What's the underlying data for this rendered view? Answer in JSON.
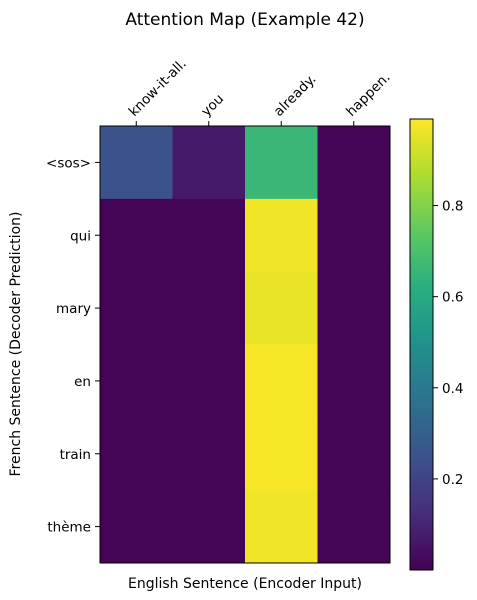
{
  "chart_data": {
    "type": "heatmap",
    "title": "Attention Map (Example 42)",
    "xlabel": "English Sentence (Encoder Input)",
    "ylabel": "French Sentence (Decoder Prediction)",
    "x_categories": [
      "know-it-all.",
      "you",
      "already.",
      "happen."
    ],
    "y_categories": [
      "<sos>",
      "qui",
      "mary",
      "en",
      "train",
      "thème"
    ],
    "values": [
      [
        0.25,
        0.07,
        0.66,
        0.01
      ],
      [
        0.01,
        0.01,
        0.97,
        0.01
      ],
      [
        0.01,
        0.01,
        0.96,
        0.01
      ],
      [
        0.01,
        0.01,
        0.98,
        0.01
      ],
      [
        0.01,
        0.01,
        0.98,
        0.01
      ],
      [
        0.01,
        0.01,
        0.97,
        0.01
      ]
    ],
    "colormap": "viridis",
    "colorbar": {
      "range": [
        0.0,
        0.99
      ],
      "ticks": [
        0.2,
        0.4,
        0.6,
        0.8
      ],
      "tick_labels": [
        "0.2",
        "0.4",
        "0.6",
        "0.8"
      ]
    },
    "grid": false,
    "legend": "colorbar-right"
  }
}
